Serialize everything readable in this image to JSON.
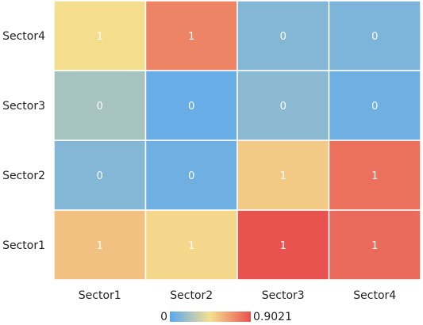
{
  "chart_data": {
    "type": "heatmap",
    "x_categories": [
      "Sector1",
      "Sector2",
      "Sector3",
      "Sector4"
    ],
    "y_categories": [
      "Sector1",
      "Sector2",
      "Sector3",
      "Sector4"
    ],
    "values": [
      [
        0.55,
        0.48,
        0.9,
        0.82
      ],
      [
        0.12,
        0.06,
        0.52,
        0.8
      ],
      [
        0.22,
        0.04,
        0.14,
        0.06
      ],
      [
        0.46,
        0.74,
        0.12,
        0.1
      ]
    ],
    "cell_labels": [
      [
        "1",
        "1",
        "1",
        "1"
      ],
      [
        "0",
        "0",
        "1",
        "1"
      ],
      [
        "0",
        "0",
        "0",
        "0"
      ],
      [
        "1",
        "1",
        "0",
        "0"
      ]
    ],
    "visual_map": {
      "min": 0,
      "max": 0.9021,
      "min_label": "0",
      "max_label": "0.9021",
      "colors": [
        "#5aa8ef",
        "#f5e08f",
        "#e8514f"
      ]
    }
  }
}
